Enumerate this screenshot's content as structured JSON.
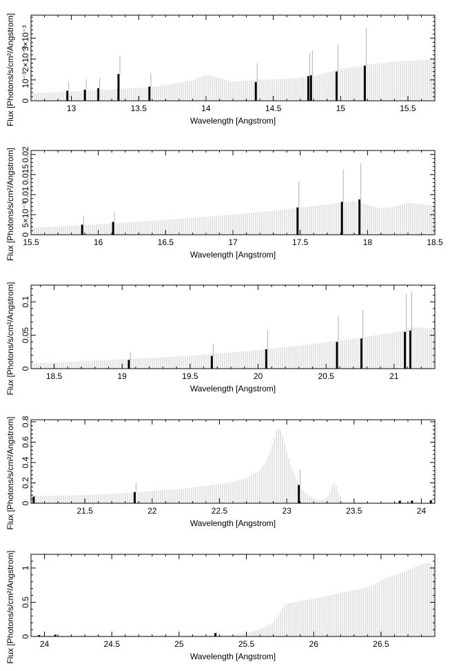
{
  "colors": {
    "model": "#c9c9c9",
    "lines": "#000000",
    "errors": "#b0b0b0",
    "axes": "#000000"
  },
  "chart_data": [
    {
      "type": "bar",
      "xlabel": "Wavelength [Angstrom]",
      "ylabel": "Flux [Photons/s/cm²/Angstrom]",
      "xlim": [
        12.7,
        15.7
      ],
      "ylim": [
        0,
        0.0041
      ],
      "grid": false,
      "xticks": [
        13,
        13.5,
        14,
        14.5,
        15,
        15.5
      ],
      "xtick_labels": [
        "13",
        "13.5",
        "14",
        "14.5",
        "15",
        "15.5"
      ],
      "yticks": [
        0,
        0.001,
        0.002,
        0.003
      ],
      "ytick_labels": [
        "0",
        "10⁻³",
        "2×10⁻³",
        "3×10⁻³"
      ],
      "continuum": {
        "x": [
          12.7,
          13.0,
          13.3,
          13.6,
          13.9,
          14.0,
          14.2,
          14.4,
          14.6,
          14.8,
          15.0,
          15.2,
          15.4,
          15.7
        ],
        "y": [
          0.00035,
          0.00045,
          0.00055,
          0.00065,
          0.00098,
          0.00125,
          0.00092,
          0.00102,
          0.00105,
          0.00118,
          0.00152,
          0.00172,
          0.00188,
          0.00198
        ]
      },
      "lines": [
        {
          "x": 12.97,
          "y": 0.00048,
          "err": 0.00045
        },
        {
          "x": 13.1,
          "y": 0.00053,
          "err": 0.0005
        },
        {
          "x": 13.2,
          "y": 0.0006,
          "err": 0.0005
        },
        {
          "x": 13.35,
          "y": 0.00128,
          "err": 0.0009
        },
        {
          "x": 13.58,
          "y": 0.00068,
          "err": 0.00065
        },
        {
          "x": 14.37,
          "y": 0.0009,
          "err": 0.0009
        },
        {
          "x": 14.76,
          "y": 0.00118,
          "err": 0.0011
        },
        {
          "x": 14.78,
          "y": 0.00122,
          "err": 0.0012
        },
        {
          "x": 14.97,
          "y": 0.0014,
          "err": 0.0013
        },
        {
          "x": 15.18,
          "y": 0.00168,
          "err": 0.0018
        }
      ]
    },
    {
      "type": "bar",
      "xlabel": "Wavelength [Angstrom]",
      "ylabel": "Flux [Photons/s/cm²/Angstrom]",
      "xlim": [
        15.5,
        18.5
      ],
      "ylim": [
        0,
        0.021
      ],
      "grid": false,
      "xticks": [
        15.5,
        16,
        16.5,
        17,
        17.5,
        18,
        18.5
      ],
      "xtick_labels": [
        "15.5",
        "16",
        "16.5",
        "17",
        "17.5",
        "18",
        "18.5"
      ],
      "yticks": [
        0,
        0.005,
        0.01,
        0.015,
        0.02
      ],
      "ytick_labels": [
        "0",
        "5×10⁻³",
        "0.01",
        "0.015",
        "0.02"
      ],
      "continuum": {
        "x": [
          15.5,
          15.8,
          16.1,
          16.4,
          16.7,
          17.0,
          17.3,
          17.5,
          17.7,
          17.9,
          18.0,
          18.1,
          18.2,
          18.3,
          18.5
        ],
        "y": [
          0.0018,
          0.0022,
          0.0028,
          0.0035,
          0.0042,
          0.005,
          0.006,
          0.0068,
          0.0075,
          0.0085,
          0.0075,
          0.0065,
          0.007,
          0.008,
          0.0072
        ]
      },
      "lines": [
        {
          "x": 15.88,
          "y": 0.0025,
          "err": 0.0022
        },
        {
          "x": 16.11,
          "y": 0.0032,
          "err": 0.0025
        },
        {
          "x": 17.48,
          "y": 0.0068,
          "err": 0.0065
        },
        {
          "x": 17.81,
          "y": 0.0082,
          "err": 0.0081
        },
        {
          "x": 17.94,
          "y": 0.0088,
          "err": 0.009
        }
      ]
    },
    {
      "type": "bar",
      "xlabel": "Wavelength [Angstrom]",
      "ylabel": "Flux [Photons/s/cm²/Angstrom]",
      "xlim": [
        18.33,
        21.3
      ],
      "ylim": [
        0,
        0.125
      ],
      "grid": false,
      "xticks": [
        18.5,
        19,
        19.5,
        20,
        20.5,
        21
      ],
      "xtick_labels": [
        "18.5",
        "19",
        "19.5",
        "20",
        "20.5",
        "21"
      ],
      "yticks": [
        0,
        0.05,
        0.1
      ],
      "ytick_labels": [
        "0",
        "0.05",
        "0.1"
      ],
      "continuum": {
        "x": [
          18.33,
          18.6,
          19.0,
          19.4,
          19.8,
          20.2,
          20.6,
          21.0,
          21.15,
          21.3
        ],
        "y": [
          0.008,
          0.01,
          0.014,
          0.018,
          0.024,
          0.032,
          0.042,
          0.054,
          0.062,
          0.06
        ]
      },
      "lines": [
        {
          "x": 19.05,
          "y": 0.013,
          "err": 0.012
        },
        {
          "x": 19.66,
          "y": 0.019,
          "err": 0.018
        },
        {
          "x": 20.06,
          "y": 0.029,
          "err": 0.028
        },
        {
          "x": 20.58,
          "y": 0.04,
          "err": 0.039
        },
        {
          "x": 20.76,
          "y": 0.045,
          "err": 0.043
        },
        {
          "x": 21.08,
          "y": 0.055,
          "err": 0.057
        },
        {
          "x": 21.12,
          "y": 0.057,
          "err": 0.058
        }
      ]
    },
    {
      "type": "bar",
      "xlabel": "Wavelength [Angstrom]",
      "ylabel": "Flux [Photons/s/cm²/Angstrom]",
      "xlim": [
        21.1,
        24.1
      ],
      "ylim": [
        0,
        0.82
      ],
      "grid": false,
      "xticks": [
        21.5,
        22,
        22.5,
        23,
        23.5,
        24
      ],
      "xtick_labels": [
        "21.5",
        "22",
        "22.5",
        "23",
        "23.5",
        "24"
      ],
      "yticks": [
        0,
        0.2,
        0.4,
        0.6,
        0.8
      ],
      "ytick_labels": [
        "0",
        "0.2",
        "0.4",
        "0.6",
        "0.8"
      ],
      "continuum": {
        "x": [
          21.1,
          21.5,
          21.8,
          22.0,
          22.2,
          22.4,
          22.6,
          22.7,
          22.8,
          22.85,
          22.9,
          22.93,
          22.96,
          23.0,
          23.05,
          23.1,
          23.15,
          23.2,
          23.25,
          23.3,
          23.34,
          23.36,
          23.38,
          23.42,
          23.6,
          24.1
        ],
        "y": [
          0.07,
          0.08,
          0.1,
          0.12,
          0.14,
          0.17,
          0.21,
          0.25,
          0.32,
          0.42,
          0.6,
          0.75,
          0.7,
          0.5,
          0.3,
          0.15,
          0.09,
          0.05,
          0.03,
          0.05,
          0.18,
          0.2,
          0.12,
          0.01,
          0.005,
          0.005
        ]
      },
      "lines": [
        {
          "x": 21.12,
          "y": 0.065,
          "err": 0.01
        },
        {
          "x": 21.87,
          "y": 0.11,
          "err": 0.09
        },
        {
          "x": 23.09,
          "y": 0.18,
          "err": 0.15
        },
        {
          "x": 23.84,
          "y": 0.025,
          "err": 0.01
        },
        {
          "x": 23.93,
          "y": 0.025,
          "err": 0.01
        },
        {
          "x": 24.07,
          "y": 0.03,
          "err": 0.01
        }
      ]
    },
    {
      "type": "bar",
      "xlabel": "Wavelength [Angstrom]",
      "ylabel": "Flux [Photons/s/cm²/Angstrom]",
      "xlim": [
        23.9,
        26.9
      ],
      "ylim": [
        0,
        1.2
      ],
      "grid": false,
      "xticks": [
        24,
        24.5,
        25,
        25.5,
        26,
        26.5
      ],
      "xtick_labels": [
        "24",
        "24.5",
        "25",
        "25.5",
        "26",
        "26.5"
      ],
      "yticks": [
        0,
        0.5,
        1
      ],
      "ytick_labels": [
        "0",
        "0.5",
        "1"
      ],
      "continuum": {
        "x": [
          23.9,
          24.5,
          25.0,
          25.3,
          25.5,
          25.6,
          25.7,
          25.75,
          25.78,
          25.8,
          26.0,
          26.4,
          26.45,
          26.5,
          26.8,
          26.85,
          26.9
        ],
        "y": [
          0.01,
          0.01,
          0.01,
          0.02,
          0.05,
          0.1,
          0.2,
          0.35,
          0.45,
          0.48,
          0.55,
          0.72,
          0.75,
          0.82,
          1.05,
          1.08,
          1.02
        ]
      },
      "lines": [
        {
          "x": 23.96,
          "y": 0.02,
          "err": 0.01
        },
        {
          "x": 24.08,
          "y": 0.025,
          "err": 0.01
        },
        {
          "x": 25.27,
          "y": 0.05,
          "err": 0.02
        }
      ]
    }
  ]
}
